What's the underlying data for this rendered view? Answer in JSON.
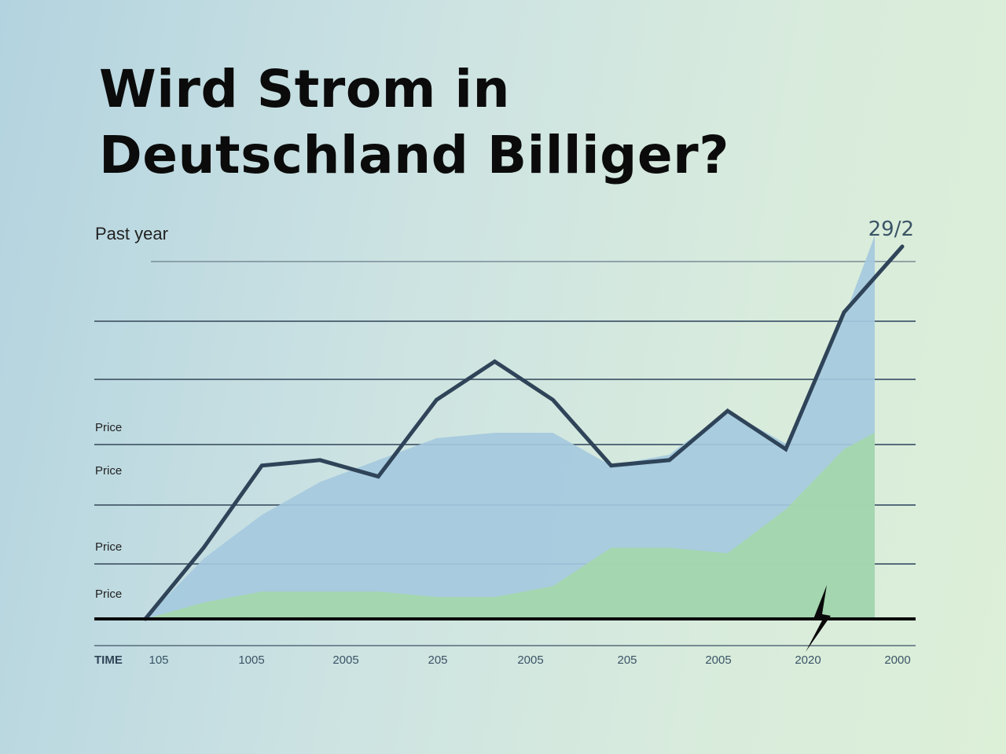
{
  "chart_data": {
    "type": "area",
    "title_lines": [
      "Wird Strom in",
      "Deutschland Billiger?"
    ],
    "subtitle": "Past year",
    "top_right_label": "29/2",
    "ylabel_ticks": [
      "Price",
      "Price",
      "Price",
      "Price"
    ],
    "x_axis_label": "TIME",
    "x_tick_labels": [
      "105",
      "1005",
      "2005",
      "205",
      "2005",
      "205",
      "2005",
      "2020",
      "2000"
    ],
    "grid": true,
    "colors": {
      "line": "#2f4458",
      "area_blue": "#a5c9de",
      "area_green": "#a3d6ad",
      "baseline": "#0a0a0a",
      "gridline": "#566b7a"
    },
    "series": [
      {
        "kind": "line",
        "values": [
          0,
          13,
          28,
          29,
          26,
          40,
          47,
          40,
          28,
          29,
          38,
          31,
          56,
          68
        ]
      },
      {
        "kind": "blue-area",
        "values": [
          0,
          11,
          19,
          25,
          29,
          33,
          34,
          34,
          28,
          30,
          38,
          32,
          55,
          70
        ]
      },
      {
        "kind": "green-area",
        "values": [
          0,
          3,
          5,
          5,
          5,
          4,
          4,
          6,
          13,
          13,
          12,
          20,
          31,
          34
        ]
      }
    ],
    "ylim": [
      0,
      70
    ],
    "icons": [
      "lightning-bolt-icon"
    ]
  }
}
